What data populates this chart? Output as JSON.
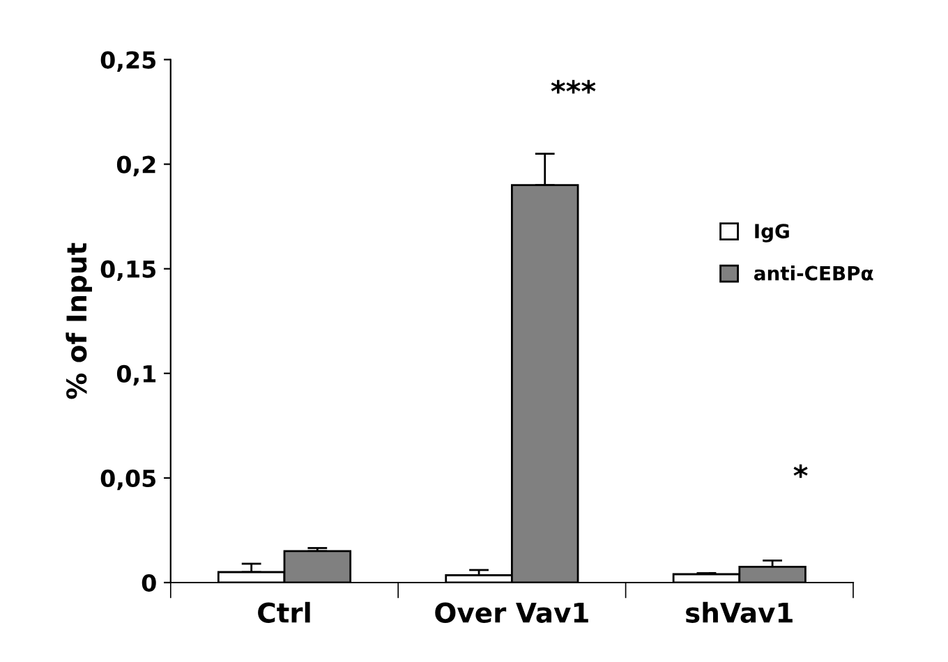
{
  "chart_data": {
    "type": "bar",
    "ylabel": "% of Input",
    "categories": [
      "Ctrl",
      "Over Vav1",
      "shVav1"
    ],
    "series": [
      {
        "name": "IgG",
        "color": "#ffffff",
        "values": [
          0.005,
          0.0035,
          0.004
        ],
        "errors": [
          [
            0.005,
            0.009
          ],
          [
            0.0035,
            0.006
          ],
          [
            0.004,
            0.0045
          ]
        ]
      },
      {
        "name": "anti-CEBPα",
        "color": "#808080",
        "values": [
          0.015,
          0.19,
          0.0075
        ],
        "errors": [
          [
            0.015,
            0.0165
          ],
          [
            0.19,
            0.205
          ],
          [
            0.0075,
            0.0105
          ]
        ]
      }
    ],
    "annotations": [
      "***",
      "*"
    ],
    "ylim": [
      0,
      0.25
    ],
    "yticks": [
      {
        "value": 0,
        "label": "0"
      },
      {
        "value": 0.05,
        "label": "0,05"
      },
      {
        "value": 0.1,
        "label": "0,1"
      },
      {
        "value": 0.15,
        "label": "0,15"
      },
      {
        "value": 0.2,
        "label": "0,2"
      },
      {
        "value": 0.25,
        "label": "0,25"
      }
    ],
    "grid": false,
    "legend": "right"
  }
}
